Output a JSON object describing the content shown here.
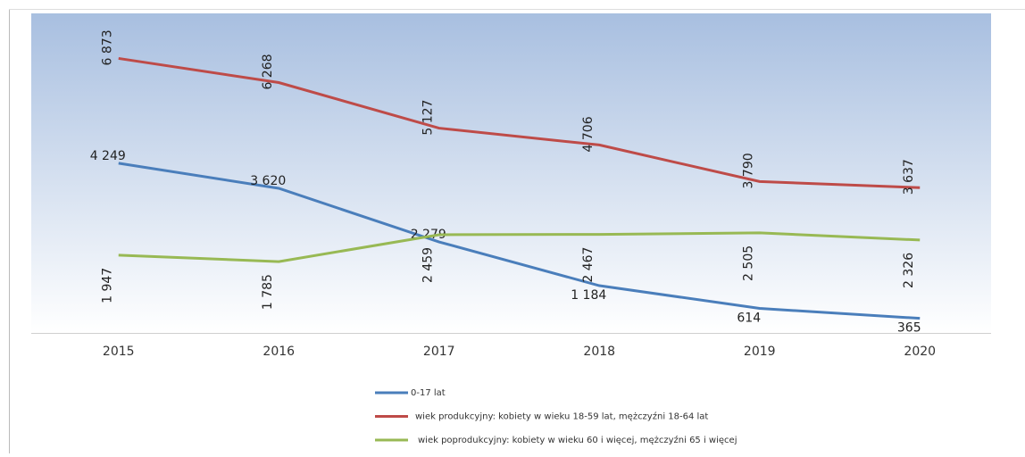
{
  "chart_data": {
    "type": "line",
    "categories": [
      "2015",
      "2016",
      "2017",
      "2018",
      "2019",
      "2020"
    ],
    "ylim": [
      0,
      8000
    ],
    "series": [
      {
        "name": "0-17 lat",
        "color": "#4a7ebb",
        "values": [
          4249,
          3620,
          2279,
          1184,
          614,
          365
        ],
        "value_labels": [
          "4 249",
          "3 620",
          "2 279",
          "1 184",
          "614",
          "365"
        ]
      },
      {
        "name": "wiek produkcyjny: kobiety w wieku 18-59 lat, mężczyźni 18-64 lat",
        "color": "#be4b48",
        "values": [
          6873,
          6268,
          5127,
          4706,
          3790,
          3637
        ],
        "value_labels": [
          "6 873",
          "6 268",
          "5 127",
          "4 706",
          "3 790",
          "3 637"
        ]
      },
      {
        "name": "wiek poprodukcyjny: kobiety w wieku 60 i więcej, mężczyźni 65 i więcej",
        "color": "#98b954",
        "values": [
          1947,
          1785,
          2459,
          2467,
          2505,
          2326
        ],
        "value_labels": [
          "1 947",
          "1 785",
          "2 459",
          "2 467",
          "2 505",
          "2 326"
        ]
      }
    ]
  }
}
